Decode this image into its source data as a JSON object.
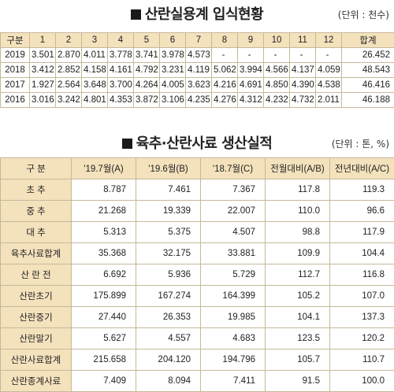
{
  "section1": {
    "title": "산란실용계 입식현황",
    "unit": "(단위 : 천수)",
    "headers": [
      "구분",
      "1",
      "2",
      "3",
      "4",
      "5",
      "6",
      "7",
      "8",
      "9",
      "10",
      "11",
      "12",
      "합계"
    ],
    "rows": [
      [
        "2019",
        "3.501",
        "2.870",
        "4.011",
        "3.778",
        "3.741",
        "3.978",
        "4.573",
        "-",
        "-",
        "-",
        "-",
        "-",
        "26.452"
      ],
      [
        "2018",
        "3.412",
        "2.852",
        "4.158",
        "4.161",
        "4.792",
        "3.231",
        "4.119",
        "5.062",
        "3.994",
        "4.566",
        "4.137",
        "4.059",
        "48.543"
      ],
      [
        "2017",
        "1.927",
        "2.564",
        "3.648",
        "3.700",
        "4.264",
        "4.005",
        "3.623",
        "4.216",
        "4.691",
        "4.850",
        "4.390",
        "4.538",
        "46.416"
      ],
      [
        "2016",
        "3.016",
        "3.242",
        "4.801",
        "4.353",
        "3.872",
        "3.106",
        "4.235",
        "4.276",
        "4.312",
        "4.232",
        "4.732",
        "2.011",
        "46.188"
      ]
    ]
  },
  "section2": {
    "title": "육추·산란사료 생산실적",
    "unit": "(단위 : 톤, %)",
    "headers": [
      "구 분",
      "'19.7월(A)",
      "'19.6월(B)",
      "'18.7월(C)",
      "전월대비(A/B)",
      "전년대비(A/C)"
    ],
    "rows": [
      [
        "초 추",
        "8.787",
        "7.461",
        "7.367",
        "117.8",
        "119.3"
      ],
      [
        "중 추",
        "21.268",
        "19.339",
        "22.007",
        "110.0",
        "96.6"
      ],
      [
        "대 추",
        "5.313",
        "5.375",
        "4.507",
        "98.8",
        "117.9"
      ],
      [
        "육추사료합계",
        "35.368",
        "32.175",
        "33.881",
        "109.9",
        "104.4"
      ],
      [
        "산 란 전",
        "6.692",
        "5.936",
        "5.729",
        "112.7",
        "116.8"
      ],
      [
        "산란초기",
        "175.899",
        "167.274",
        "164.399",
        "105.2",
        "107.0"
      ],
      [
        "산란중기",
        "27.440",
        "26.353",
        "19.985",
        "104.1",
        "137.3"
      ],
      [
        "산란말기",
        "5.627",
        "4.557",
        "4.683",
        "123.5",
        "120.2"
      ],
      [
        "산란사료합계",
        "215.658",
        "204.120",
        "194.796",
        "105.7",
        "110.7"
      ],
      [
        "산란종계사료",
        "7.409",
        "8.094",
        "7.411",
        "91.5",
        "100.0"
      ]
    ]
  }
}
